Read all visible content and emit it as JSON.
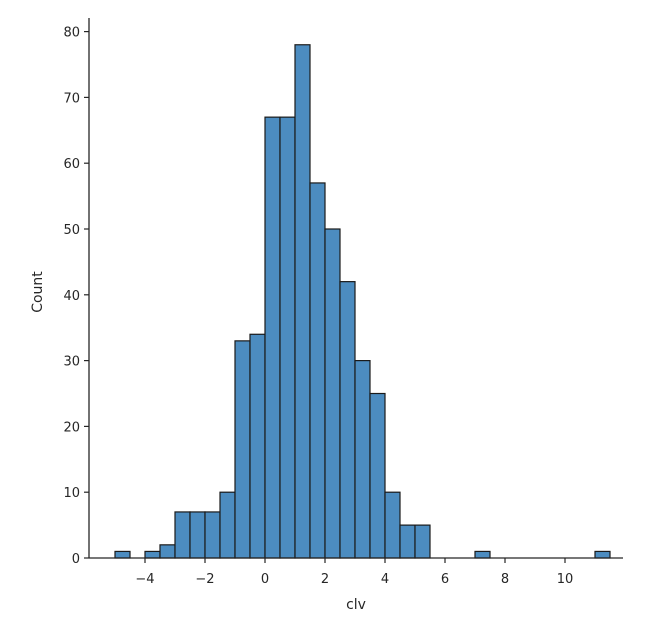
{
  "chart_data": {
    "type": "bar",
    "xlabel": "clv",
    "ylabel": "Count",
    "xlim": [
      -5.3,
      11.7
    ],
    "ylim": [
      0,
      82
    ],
    "bin_start": -5.0,
    "bin_width": 0.5,
    "values": [
      1,
      0,
      1,
      2,
      7,
      7,
      7,
      10,
      33,
      34,
      67,
      67,
      78,
      57,
      50,
      42,
      30,
      25,
      10,
      5,
      5,
      0,
      0,
      0,
      1,
      0,
      0,
      0,
      0,
      0,
      0,
      0,
      1
    ],
    "x_ticks": [
      -4,
      -2,
      0,
      2,
      4,
      6,
      8,
      10
    ],
    "x_tick_labels": [
      "−4",
      "−2",
      "0",
      "2",
      "4",
      "6",
      "8",
      "10"
    ],
    "y_ticks": [
      0,
      10,
      20,
      30,
      40,
      50,
      60,
      70,
      80
    ],
    "y_tick_labels": [
      "0",
      "10",
      "20",
      "30",
      "40",
      "50",
      "60",
      "70",
      "80"
    ],
    "grid": false,
    "legend": "none",
    "bar_color": "#4c8cc0"
  }
}
